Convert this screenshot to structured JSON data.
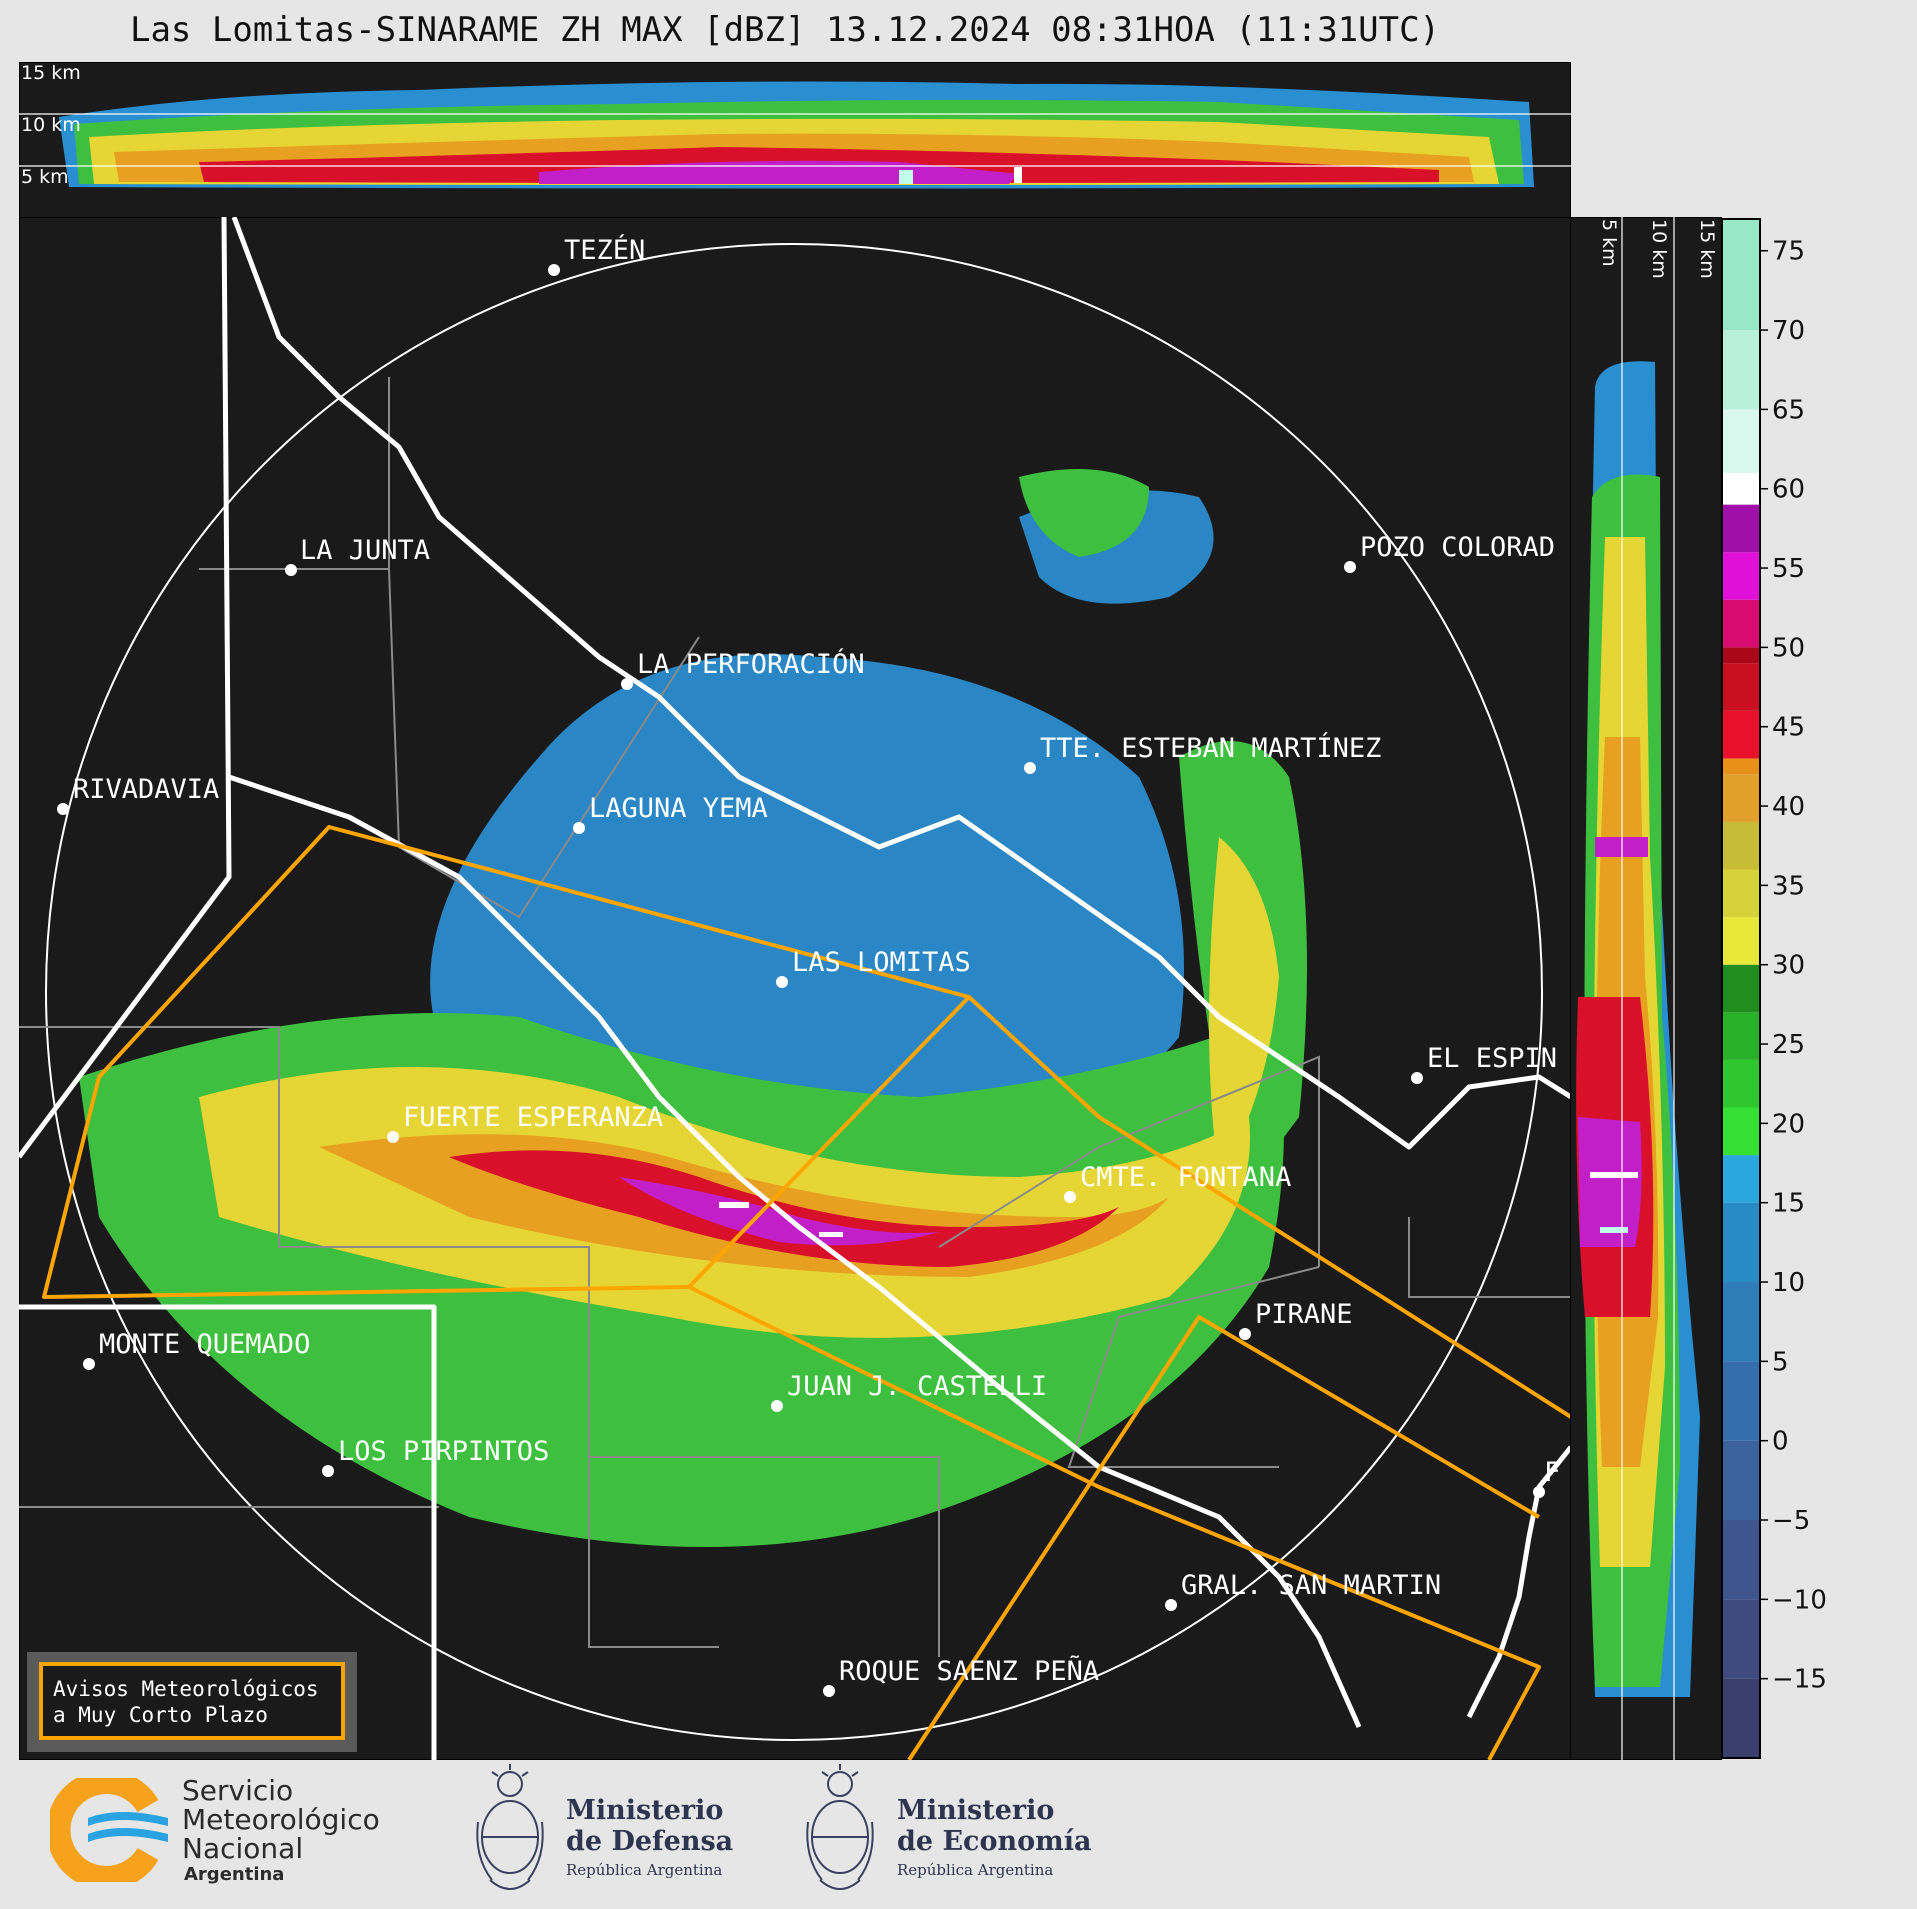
{
  "header": {
    "title": "Las Lomitas-SINARAME ZH MAX [dBZ] 13.12.2024 08:31HOA (11:31UTC)"
  },
  "top_profile": {
    "height_labels": [
      "15 km",
      "10 km",
      "5 km"
    ]
  },
  "right_profile": {
    "height_labels": [
      "5 km",
      "10 km",
      "15 km"
    ]
  },
  "colorbar": {
    "ticks": [
      "75",
      "70",
      "65",
      "60",
      "55",
      "50",
      "45",
      "40",
      "35",
      "30",
      "25",
      "20",
      "15",
      "10",
      "5",
      "0",
      "−5",
      "−10",
      "−15"
    ]
  },
  "places": [
    {
      "name": "TEZÉN"
    },
    {
      "name": "LA JUNTA"
    },
    {
      "name": "POZO COLORAD"
    },
    {
      "name": "LA PERFORACIÓN"
    },
    {
      "name": "TTE. ESTEBAN MARTÍNEZ"
    },
    {
      "name": "RIVADAVIA"
    },
    {
      "name": "LAGUNA YEMA"
    },
    {
      "name": "LAS LOMITAS"
    },
    {
      "name": "EL ESPIN"
    },
    {
      "name": "FUERTE ESPERANZA"
    },
    {
      "name": "CMTE. FONTANA"
    },
    {
      "name": "PIRANE"
    },
    {
      "name": "MONTE QUEMADO"
    },
    {
      "name": "JUAN J. CASTELLI"
    },
    {
      "name": "LOS PIRPINTOS"
    },
    {
      "name": "F"
    },
    {
      "name": "GRAL. SAN MARTIN"
    },
    {
      "name": "ROQUE SAENZ PEÑA"
    }
  ],
  "warning_box": {
    "line1": "Avisos Meteorológicos",
    "line2": "a Muy Corto Plazo"
  },
  "footer": {
    "smn": {
      "line1": "Servicio",
      "line2": "Meteorológico",
      "line3": "Nacional",
      "line4": "Argentina"
    },
    "defensa": {
      "line1": "Ministerio",
      "line2": "de Defensa",
      "line3": "República Argentina"
    },
    "economia": {
      "line1": "Ministerio",
      "line2": "de Economía",
      "line3": "República Argentina"
    }
  },
  "colors": {
    "background": "#1a1a1a",
    "range_ring": "#ffffff",
    "warning_polygon": "#ffa500",
    "smn_orange": "#f7a21b",
    "smn_blue": "#2aa3e0"
  }
}
